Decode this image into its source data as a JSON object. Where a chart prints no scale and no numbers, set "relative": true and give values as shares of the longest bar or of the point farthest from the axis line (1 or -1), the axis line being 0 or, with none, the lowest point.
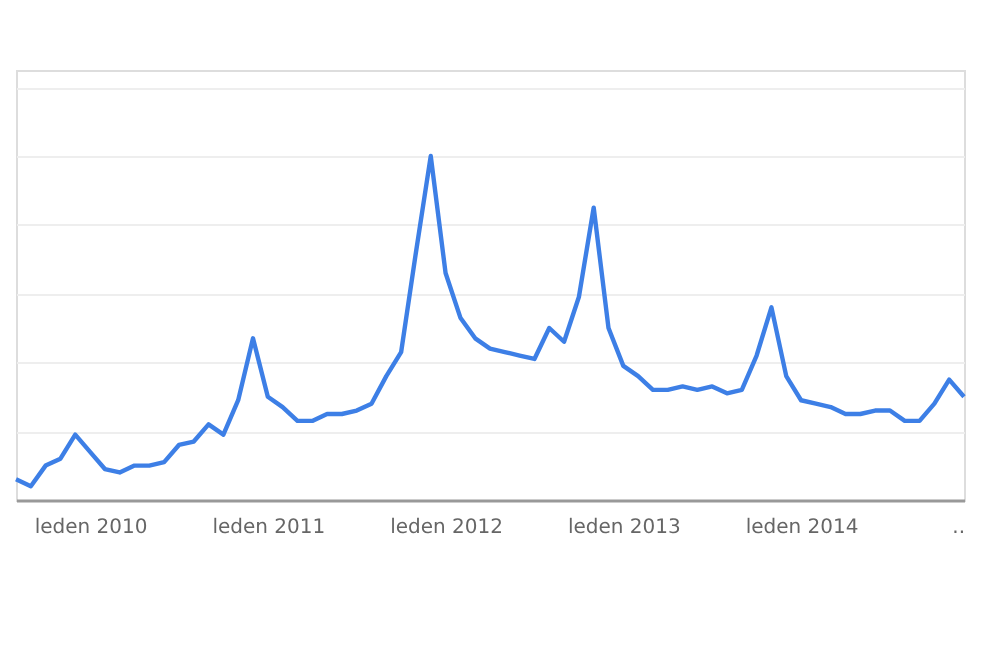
{
  "chart_data": {
    "type": "line",
    "relative": true,
    "grid": "y",
    "categories": [
      null,
      null,
      null,
      null,
      null,
      "leden 2010",
      null,
      null,
      null,
      null,
      null,
      null,
      null,
      null,
      null,
      null,
      null,
      "leden 2011",
      null,
      null,
      null,
      null,
      null,
      null,
      null,
      null,
      null,
      null,
      null,
      "leden 2012",
      null,
      null,
      null,
      null,
      null,
      null,
      null,
      null,
      null,
      null,
      null,
      "leden 2013",
      null,
      null,
      null,
      null,
      null,
      null,
      null,
      null,
      null,
      null,
      null,
      "leden 2014",
      null,
      null,
      null,
      null,
      null,
      null,
      null,
      null,
      null,
      null,
      ".."
    ],
    "series": [
      {
        "color": "#3d7fe6",
        "values": [
          0.06,
          0.04,
          0.1,
          0.12,
          0.19,
          0.14,
          0.09,
          0.08,
          0.1,
          0.1,
          0.11,
          0.16,
          0.17,
          0.22,
          0.19,
          0.29,
          0.47,
          0.3,
          0.27,
          0.23,
          0.23,
          0.25,
          0.25,
          0.26,
          0.28,
          0.36,
          0.43,
          0.72,
          1.0,
          0.66,
          0.53,
          0.47,
          0.44,
          0.43,
          0.42,
          0.41,
          0.5,
          0.46,
          0.59,
          0.85,
          0.5,
          0.39,
          0.36,
          0.32,
          0.32,
          0.33,
          0.32,
          0.33,
          0.31,
          0.32,
          0.42,
          0.56,
          0.36,
          0.29,
          0.28,
          0.27,
          0.25,
          0.25,
          0.26,
          0.26,
          0.23,
          0.23,
          0.28,
          0.35,
          0.3
        ]
      }
    ]
  }
}
